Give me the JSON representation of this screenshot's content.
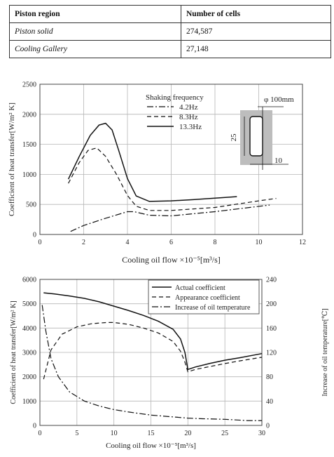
{
  "table": {
    "headers": [
      "Piston region",
      "Number of cells"
    ],
    "rows": [
      [
        "Piston solid",
        "274,587"
      ],
      [
        "Cooling Gallery",
        "27,148"
      ]
    ]
  },
  "chart_data": [
    {
      "type": "line",
      "title": "",
      "xlabel": "Cooling oil flow ×10⁻⁵[m³/s]",
      "ylabel": "Coefficient of heat transfer[W/m² K]",
      "xlim": [
        0,
        12
      ],
      "ylim": [
        0,
        2500
      ],
      "xticks": [
        "0",
        "2",
        "4",
        "6",
        "8",
        "10",
        "12"
      ],
      "yticks": [
        "0",
        "500",
        "1000",
        "1500",
        "2000",
        "2500"
      ],
      "grid": true,
      "legend_title": "Shaking frequency",
      "legend_position": "top-center",
      "series": [
        {
          "name": "4.2Hz",
          "style": "dash-dot",
          "x": [
            1.4,
            2.0,
            3.0,
            4.0,
            4.3,
            5.0,
            6.0,
            8.0,
            10.5
          ],
          "y": [
            50,
            150,
            270,
            380,
            380,
            320,
            310,
            380,
            490
          ]
        },
        {
          "name": "8.3Hz",
          "style": "dashed",
          "x": [
            1.3,
            1.8,
            2.2,
            2.6,
            3.0,
            3.5,
            4.0,
            4.4,
            5.0,
            6.0,
            8.0,
            10.0,
            10.8
          ],
          "y": [
            850,
            1200,
            1400,
            1440,
            1300,
            1000,
            650,
            470,
            400,
            400,
            450,
            560,
            600
          ]
        },
        {
          "name": "13.3Hz",
          "style": "solid",
          "x": [
            1.3,
            1.8,
            2.3,
            2.7,
            3.0,
            3.3,
            3.6,
            4.0,
            4.4,
            5.0,
            6.0,
            7.0,
            9.0
          ],
          "y": [
            920,
            1300,
            1650,
            1820,
            1850,
            1740,
            1400,
            930,
            640,
            550,
            560,
            580,
            630
          ]
        }
      ],
      "inset": {
        "diameter_label": "φ 100mm",
        "height_label": "25",
        "width_label": "10"
      }
    },
    {
      "type": "line",
      "title": "",
      "xlabel": "Cooling oil flow ×10⁻⁵[m³/s]",
      "ylabel": "Coefficient of heat transfer[W/m² K]",
      "ylabel_right": "Increase of oil temperature[℃]",
      "xlim": [
        0,
        30
      ],
      "ylim": [
        0,
        6000
      ],
      "ylim_right": [
        0,
        240
      ],
      "xticks": [
        "0",
        "5",
        "10",
        "15",
        "20",
        "25",
        "30"
      ],
      "yticks": [
        "0",
        "1000",
        "2000",
        "3000",
        "4000",
        "5000",
        "6000"
      ],
      "yticks_right": [
        "0",
        "40",
        "80",
        "120",
        "160",
        "200",
        "240"
      ],
      "grid": true,
      "legend_position": "top-right",
      "series": [
        {
          "name": "Actual coefficient",
          "style": "solid",
          "axis": "left",
          "x": [
            0.5,
            2,
            4,
            6,
            8,
            10,
            12,
            14,
            16,
            18,
            19,
            19.6,
            20,
            21,
            23,
            25,
            27,
            30
          ],
          "y": [
            5450,
            5400,
            5320,
            5220,
            5080,
            4900,
            4720,
            4520,
            4280,
            3950,
            3550,
            3000,
            2300,
            2400,
            2550,
            2680,
            2780,
            2950
          ]
        },
        {
          "name": "Appearance coefficient",
          "style": "dashed",
          "axis": "left",
          "x": [
            0.5,
            1.5,
            3,
            5,
            7,
            9,
            10,
            12,
            14,
            16,
            18,
            19,
            19.6,
            20,
            21,
            23,
            25,
            27,
            30
          ],
          "y": [
            1900,
            3100,
            3750,
            4050,
            4180,
            4230,
            4230,
            4150,
            4000,
            3800,
            3450,
            3050,
            2600,
            2200,
            2300,
            2420,
            2540,
            2650,
            2800
          ]
        },
        {
          "name": "Increase of oil temperature",
          "style": "dash-dot",
          "axis": "right",
          "x": [
            0.3,
            0.8,
            1.5,
            2.5,
            4,
            6,
            8,
            10,
            12,
            15,
            18,
            20,
            22,
            25,
            28,
            30
          ],
          "y": [
            198,
            155,
            110,
            80,
            55,
            40,
            32,
            26,
            22,
            17,
            14,
            12,
            11,
            10,
            8,
            8
          ]
        }
      ]
    }
  ]
}
